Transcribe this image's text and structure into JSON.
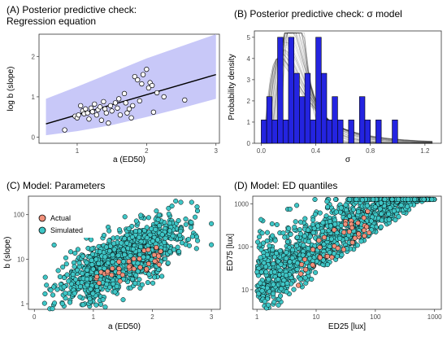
{
  "chart_data": [
    {
      "type": "scatter",
      "title": "(A) Posterior predictive check:",
      "subtitle": "Regression equation",
      "xlabel": "a (ED50)",
      "ylabel": "log b (slope)",
      "xlim": [
        0.45,
        3.05
      ],
      "ylim": [
        -0.15,
        2.55
      ],
      "xticks": [
        "1",
        "2",
        "3"
      ],
      "yticks": [
        "0",
        "1",
        "2"
      ],
      "band_color": "#c8c8f8",
      "line_color": "#000000",
      "band_x": [
        0.55,
        1.0,
        1.5,
        2.0,
        2.5,
        3.0
      ],
      "band_upper": [
        0.95,
        1.25,
        1.6,
        1.95,
        2.25,
        2.55
      ],
      "band_lower": [
        0.05,
        0.15,
        0.3,
        0.5,
        0.72,
        0.95
      ],
      "line": {
        "x": [
          0.55,
          3.0
        ],
        "y": [
          0.33,
          1.55
        ]
      },
      "points": {
        "x": [
          0.82,
          0.97,
          1.0,
          1.02,
          1.05,
          1.08,
          1.1,
          1.12,
          1.15,
          1.17,
          1.2,
          1.22,
          1.25,
          1.28,
          1.3,
          1.33,
          1.35,
          1.38,
          1.4,
          1.42,
          1.45,
          1.48,
          1.5,
          1.55,
          1.58,
          1.6,
          1.62,
          1.68,
          1.7,
          1.72,
          1.75,
          1.78,
          1.8,
          1.83,
          1.87,
          1.9,
          1.93,
          1.95,
          2.0,
          2.03,
          2.05,
          2.08,
          2.1,
          2.15,
          2.25,
          2.55
        ],
        "y": [
          0.18,
          0.52,
          0.48,
          0.55,
          0.78,
          0.65,
          0.58,
          0.7,
          0.6,
          0.45,
          0.72,
          0.63,
          0.82,
          0.55,
          0.68,
          0.75,
          0.42,
          0.88,
          0.7,
          0.6,
          0.35,
          0.78,
          0.65,
          0.85,
          0.72,
          0.95,
          0.55,
          1.08,
          0.85,
          0.6,
          0.7,
          0.48,
          0.78,
          1.5,
          1.42,
          0.9,
          1.32,
          1.55,
          1.68,
          1.22,
          1.35,
          1.28,
          0.62,
          1.1,
          1.0,
          0.92
        ]
      }
    },
    {
      "type": "bar",
      "title": "(B) Posterior predictive check: σ model",
      "xlabel": "σ",
      "ylabel": "Probability density",
      "xlim": [
        -0.05,
        1.32
      ],
      "ylim": [
        0,
        5.3
      ],
      "xticks": [
        "0.0",
        "0.4",
        "0.8",
        "1.2"
      ],
      "yticks": [
        "0",
        "1",
        "2",
        "3",
        "4",
        "5"
      ],
      "bar_color": "#2424e0",
      "bin_width": 0.04,
      "bin_starts": [
        0.0,
        0.04,
        0.08,
        0.12,
        0.16,
        0.2,
        0.24,
        0.28,
        0.32,
        0.36,
        0.4,
        0.44,
        0.48,
        0.52,
        0.56,
        0.6,
        0.64,
        0.68,
        0.72,
        0.76,
        0.8,
        0.84,
        0.88,
        0.92,
        0.96
      ],
      "density": [
        1.1,
        2.2,
        1.1,
        5.0,
        1.1,
        5.0,
        3.3,
        2.2,
        3.3,
        1.1,
        5.0,
        3.3,
        1.1,
        2.2,
        1.1,
        0.0,
        1.1,
        0.0,
        2.2,
        1.1,
        0.0,
        1.1,
        0.0,
        0.0,
        1.1
      ]
    },
    {
      "type": "scatter",
      "title": "(C) Model: Parameters",
      "xlabel": "a (ED50)",
      "ylabel": "b (slope)",
      "xlim": [
        -0.1,
        3.15
      ],
      "ylim_log": [
        0.75,
        260
      ],
      "xticks": [
        "0",
        "1",
        "2",
        "3"
      ],
      "yticks": [
        "1",
        "10",
        "100"
      ],
      "legend": [
        "Actual",
        "Simulated"
      ],
      "legend_position": "top-left",
      "actual_color": "#f0907a",
      "simulated_color": "#3ec6c6"
    },
    {
      "type": "scatter",
      "title": "(D) Model: ED quantiles",
      "xlabel": "ED25 [lux]",
      "ylabel": "ED75 [lux]",
      "xlim_log": [
        0.85,
        1300
      ],
      "ylim_log": [
        3.5,
        1500
      ],
      "xticks": [
        "1",
        "10",
        "100",
        "1000"
      ],
      "yticks": [
        "10",
        "100",
        "1000"
      ],
      "actual_color": "#f0907a",
      "simulated_color": "#3ec6c6"
    }
  ]
}
